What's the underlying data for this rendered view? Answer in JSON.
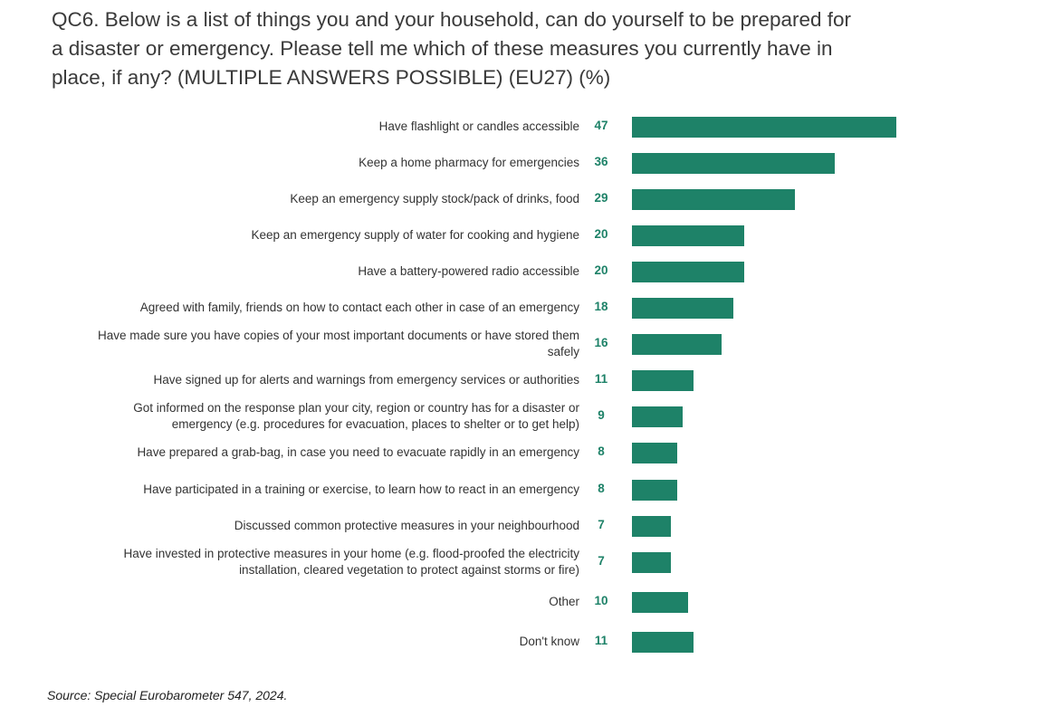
{
  "title_lines": [
    "QC6. Below is a list of things you and your household, can do yourself to be prepared for",
    "a disaster or emergency. Please tell me which of these measures you currently have in",
    "place, if any? (MULTIPLE ANSWERS POSSIBLE) (EU27) (%)"
  ],
  "source": "Source: Special Eurobarometer 547, 2024.",
  "chart_data": {
    "type": "bar",
    "orientation": "horizontal",
    "bar_color": "#1e8268",
    "value_label_color": "#1e8268",
    "categories": [
      [
        "Have flashlight or candles accessible"
      ],
      [
        "Keep a home pharmacy for emergencies"
      ],
      [
        "Keep an emergency supply stock/pack of drinks, food"
      ],
      [
        "Keep an emergency supply of water for cooking and hygiene"
      ],
      [
        "Have a battery-powered radio accessible"
      ],
      [
        "Agreed with family, friends on how to contact each other in case of an emergency"
      ],
      [
        "Have made sure you have copies of your most important documents or have stored them",
        "safely"
      ],
      [
        "Have signed up for alerts and warnings from emergency services or authorities"
      ],
      [
        "Got informed on the response plan your city, region or country has for a disaster or",
        "emergency (e.g. procedures for evacuation, places to shelter or to get help)"
      ],
      [
        "Have prepared a grab-bag, in case you need to evacuate rapidly in an emergency"
      ],
      [
        "Have participated in a training or exercise, to learn how to react in an emergency"
      ],
      [
        "Discussed common protective measures in your neighbourhood"
      ],
      [
        "Have invested in protective measures in your home (e.g. flood-proofed the electricity",
        "installation, cleared vegetation to protect against storms or fire)"
      ],
      [
        "Other"
      ],
      [
        "Don't know"
      ]
    ],
    "values": [
      47,
      36,
      29,
      20,
      20,
      18,
      16,
      11,
      9,
      8,
      8,
      7,
      7,
      10,
      11
    ],
    "xlim": [
      0,
      47
    ]
  }
}
